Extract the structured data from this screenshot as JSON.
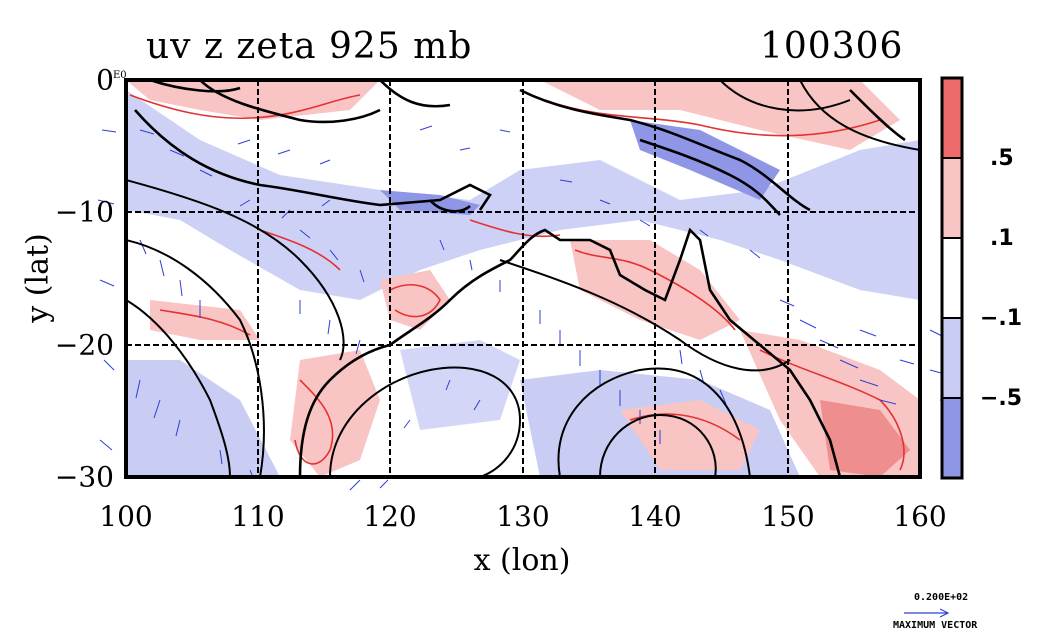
{
  "title": "uv z zeta 925 mb",
  "date": "100306",
  "plot": {
    "xlabel": "x (lon)",
    "ylabel": "y (lat)",
    "x_ticks": [
      "100",
      "110",
      "120",
      "130",
      "140",
      "150",
      "160"
    ],
    "y_ticks": [
      "0",
      "−10",
      "−20",
      "−30"
    ],
    "corner_label": "E0",
    "x_range": [
      100,
      160
    ],
    "y_range": [
      -30,
      0
    ]
  },
  "colorbar": {
    "labels": [
      ".5",
      ".1",
      "−.1",
      "−.5"
    ],
    "colors": [
      "#ee6b6b",
      "#f8c4c4",
      "#ffffff",
      "#c9cdf3",
      "#8f96e6"
    ]
  },
  "vector_legend": {
    "value": "0.200E+02",
    "label": "MAXIMUM VECTOR",
    "color": "#3342d6"
  },
  "colors": {
    "positive": "#e53131",
    "negative": "#2430d8",
    "coast": "#000000"
  }
}
